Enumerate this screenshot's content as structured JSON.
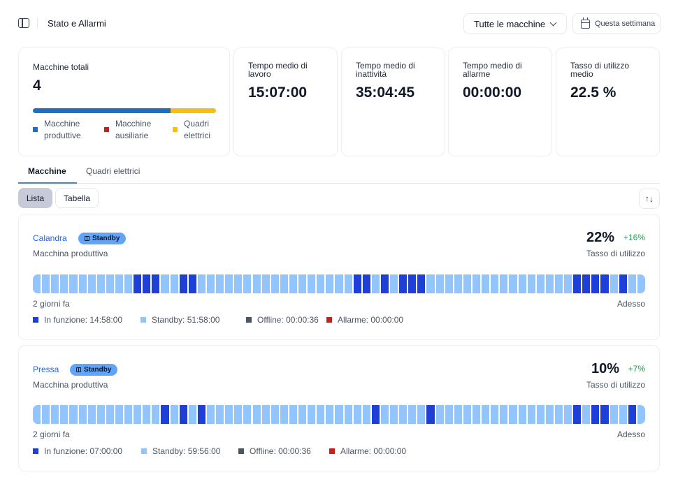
{
  "header": {
    "title": "Stato e Allarmi",
    "machine_filter": "Tutte le macchine",
    "period": "Questa settimana"
  },
  "stats": {
    "total_label": "Macchine totali",
    "total_value": "4",
    "distribution": [
      {
        "label": "Macchine produttive",
        "label_lines": [
          "Macchine",
          "produttive"
        ],
        "fraction": 0.75,
        "color": "#1d6fc4"
      },
      {
        "label": "Macchine ausiliarie",
        "label_lines": [
          "Macchine",
          "ausiliarie"
        ],
        "fraction": 0,
        "color": "#c81e1e"
      },
      {
        "label": "Quadri elettrici",
        "label_lines": [
          "Quadri",
          "elettrici"
        ],
        "fraction": 0.25,
        "color": "#f5c013"
      }
    ],
    "cards": [
      {
        "label_lines": [
          "Tempo medio di",
          "lavoro"
        ],
        "value": "15:07:00"
      },
      {
        "label_lines": [
          "Tempo medio di",
          "inattività"
        ],
        "value": "35:04:45"
      },
      {
        "label_lines": [
          "Tempo medio di",
          "allarme"
        ],
        "value": "00:00:00"
      },
      {
        "label_lines": [
          "Tasso di utilizzo",
          "medio"
        ],
        "value": "22.5 %"
      }
    ]
  },
  "tabs": [
    "Macchine",
    "Quadri elettrici"
  ],
  "view_toggle": {
    "list": "Lista",
    "table": "Tabella",
    "selected": "Lista"
  },
  "states": {
    "running": {
      "color": "#1e40d6"
    },
    "standby": {
      "color": "#93c5fd"
    },
    "offline": {
      "color": "#4b5563"
    },
    "alarm": {
      "color": "#c81e1e"
    }
  },
  "machines": [
    {
      "name": "Calandra",
      "status": "Standby",
      "type": "Macchina produttiva",
      "utilization": "22%",
      "delta": "+16%",
      "utilization_label": "Tasso di utilizzo",
      "start_label": "2 giorni fa",
      "end_label": "Adesso",
      "timeline_cells": 67,
      "timeline_running": [
        11,
        12,
        13,
        16,
        17,
        35,
        36,
        38,
        40,
        41,
        42,
        59,
        60,
        61,
        62,
        64
      ],
      "legend": [
        {
          "label": "In funzione: 14:58:00",
          "state": "running"
        },
        {
          "label": "Standby: 51:58:00",
          "state": "standby"
        },
        {
          "label": "Offline: 00:00:36",
          "state": "offline"
        },
        {
          "label": "Allarme: 00:00:00",
          "state": "alarm"
        }
      ]
    },
    {
      "name": "Pressa",
      "status": "Standby",
      "type": "Macchina produttiva",
      "utilization": "10%",
      "delta": "+7%",
      "utilization_label": "Tasso di utilizzo",
      "start_label": "2 giorni fa",
      "end_label": "Adesso",
      "timeline_cells": 67,
      "timeline_running": [
        14,
        16,
        18,
        37,
        43,
        59,
        61,
        62,
        65
      ],
      "legend": [
        {
          "label": "In funzione: 07:00:00",
          "state": "running"
        },
        {
          "label": "Standby: 59:56:00",
          "state": "standby"
        },
        {
          "label": "Offline: 00:00:36",
          "state": "offline"
        },
        {
          "label": "Allarme: 00:00:00",
          "state": "alarm"
        }
      ]
    }
  ]
}
